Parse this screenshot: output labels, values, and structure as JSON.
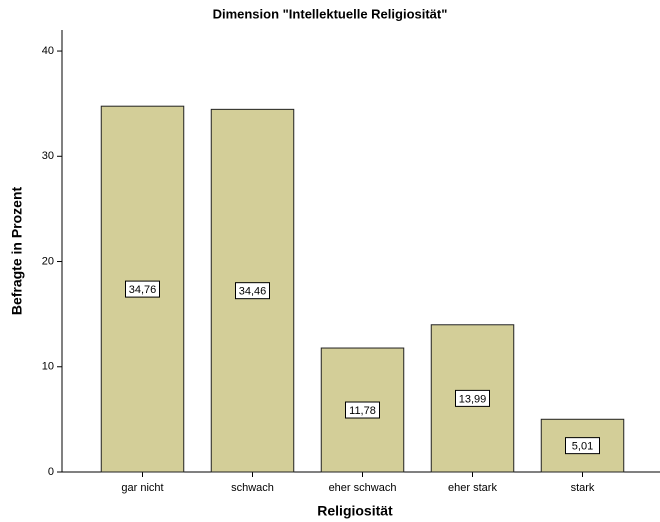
{
  "chart_data": {
    "type": "bar",
    "title": "Dimension \"Intellektuelle Religiosität\"",
    "x_label": "Religiosität",
    "y_label": "Befragte in Prozent",
    "categories": [
      "gar nicht",
      "schwach",
      "eher schwach",
      "eher stark",
      "stark"
    ],
    "values": [
      34.76,
      34.46,
      11.78,
      13.99,
      5.01
    ],
    "value_labels": [
      "34,76",
      "34,46",
      "11,78",
      "13,99",
      "5,01"
    ],
    "color": "#d3ce98",
    "ylim": [
      0,
      42
    ],
    "yticks": [
      0,
      10,
      20,
      30,
      40
    ],
    "grid": false
  }
}
